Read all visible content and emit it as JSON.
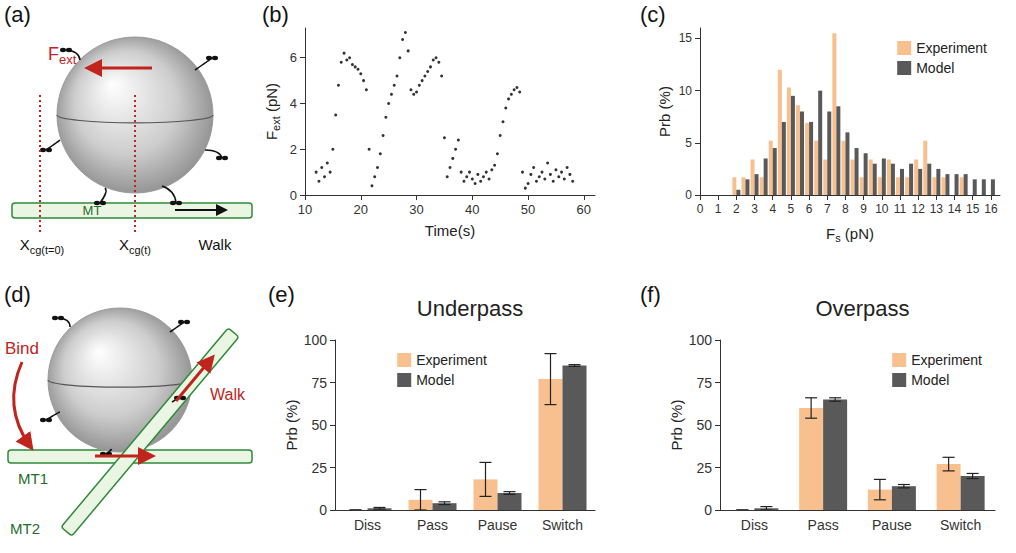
{
  "chart_data": [
    {
      "panel": "(b)",
      "type": "scatter",
      "x": [
        12,
        12.5,
        13,
        13.5,
        14,
        14.5,
        15,
        15.5,
        16,
        16.5,
        17,
        17.5,
        18,
        18.5,
        19,
        19.5,
        20,
        20.5,
        21,
        21.5,
        22,
        22.5,
        23,
        23.5,
        24,
        24.5,
        25,
        25.5,
        26,
        26.5,
        27,
        27.5,
        28,
        28.5,
        29,
        29.5,
        30,
        30.5,
        31,
        31.5,
        32,
        32.5,
        33,
        33.5,
        34,
        34.5,
        35,
        35.5,
        36,
        36.5,
        37,
        37.5,
        38,
        38.5,
        39,
        39.5,
        40,
        40.5,
        41,
        41.5,
        42,
        42.5,
        43,
        43.5,
        44,
        44.5,
        45,
        45.5,
        46,
        46.5,
        47,
        47.5,
        48,
        48.5,
        49,
        49.5,
        50,
        50.5,
        51,
        51.5,
        52,
        52.5,
        53,
        53.5,
        54,
        54.5,
        55,
        55.5,
        56,
        56.5,
        57,
        57.5,
        58
      ],
      "values": [
        1.0,
        0.6,
        1.2,
        0.8,
        1.4,
        1.0,
        2.0,
        3.5,
        4.8,
        5.8,
        6.2,
        5.9,
        6.0,
        5.7,
        5.6,
        5.5,
        5.3,
        5.0,
        4.6,
        2.0,
        0.4,
        0.8,
        1.2,
        1.8,
        2.6,
        3.4,
        4.0,
        4.4,
        4.8,
        5.2,
        6.0,
        6.8,
        7.1,
        6.3,
        4.6,
        4.4,
        4.5,
        4.8,
        5.0,
        5.2,
        5.4,
        5.6,
        5.9,
        6.0,
        5.8,
        5.2,
        2.5,
        0.8,
        1.2,
        1.6,
        2.0,
        2.4,
        1.0,
        0.6,
        0.8,
        1.0,
        0.7,
        0.5,
        0.9,
        0.6,
        0.8,
        1.0,
        0.7,
        1.1,
        1.3,
        1.8,
        2.6,
        3.2,
        3.8,
        4.2,
        4.4,
        4.6,
        4.7,
        4.5,
        1.0,
        0.3,
        0.5,
        0.9,
        1.2,
        0.6,
        0.8,
        1.0,
        0.7,
        1.4,
        0.9,
        0.6,
        1.1,
        0.8,
        1.0,
        0.7,
        1.2,
        0.9,
        0.6
      ],
      "color": "#000000",
      "marker": "circle",
      "xlabel": "Time(s)",
      "ylabel": {
        "main": "F",
        "sub": "ext",
        "rest": " (pN)"
      },
      "xlim": [
        10,
        62
      ],
      "xticks": [
        10,
        20,
        30,
        40,
        50,
        60
      ],
      "ylim": [
        0,
        7.3
      ],
      "yticks": [
        0,
        2,
        4,
        6
      ],
      "grid": false
    },
    {
      "panel": "(c)",
      "type": "bar",
      "x": [
        2,
        2.5,
        3,
        3.5,
        4,
        4.5,
        5,
        5.5,
        6,
        6.5,
        7,
        7.5,
        8,
        8.5,
        9,
        9.5,
        10,
        10.5,
        11,
        11.5,
        12,
        12.5,
        13,
        13.5,
        14,
        14.5,
        15,
        15.5,
        16
      ],
      "series": [
        {
          "name": "Experiment",
          "color": "#f8c08e",
          "values": [
            1.7,
            1.7,
            3.4,
            1.7,
            5.2,
            12,
            10.3,
            8.6,
            6.9,
            5.2,
            3.4,
            15.5,
            5.2,
            3.4,
            1.7,
            3.4,
            1.7,
            3.4,
            1.7,
            1.7,
            3.4,
            5.2,
            1.7,
            1.7,
            0,
            1.7,
            0,
            0,
            0
          ]
        },
        {
          "name": "Model",
          "color": "#595959",
          "values": [
            0.5,
            1.5,
            2.0,
            3.5,
            4.5,
            7.0,
            9.5,
            8.0,
            7.0,
            10.0,
            8.0,
            8.5,
            6.0,
            4.5,
            4.0,
            3.0,
            3.5,
            3.0,
            2.5,
            3.0,
            2.5,
            3.0,
            2.5,
            2.0,
            2.0,
            2.0,
            1.5,
            1.5,
            1.5
          ]
        }
      ],
      "xlabel": {
        "main": "F",
        "sub": "s",
        "rest": " (pN)"
      },
      "ylabel": "Prb (%)",
      "xlim": [
        0,
        16.5
      ],
      "xticks": [
        0,
        1,
        2,
        3,
        4,
        5,
        6,
        7,
        8,
        9,
        10,
        11,
        12,
        13,
        14,
        15,
        16
      ],
      "ylim": [
        0,
        16
      ],
      "yticks": [
        0,
        5,
        10,
        15
      ],
      "legend": "top-right",
      "grid": false
    },
    {
      "panel": "(e)",
      "type": "bar",
      "title": "Underpass",
      "categories": [
        "Diss",
        "Pass",
        "Pause",
        "Switch"
      ],
      "series": [
        {
          "name": "Experiment",
          "color": "#f8c08e",
          "values": [
            0,
            6,
            18,
            77
          ],
          "errors": [
            0,
            6,
            10,
            15
          ]
        },
        {
          "name": "Model",
          "color": "#595959",
          "values": [
            1,
            4,
            10,
            85
          ],
          "errors": [
            0.5,
            0.8,
            0.8,
            0.5
          ]
        }
      ],
      "ylabel": "Prb (%)",
      "ylim": [
        0,
        100
      ],
      "yticks": [
        0,
        25,
        50,
        75,
        100
      ],
      "legend": "top",
      "grid": false
    },
    {
      "panel": "(f)",
      "type": "bar",
      "title": "Overpass",
      "categories": [
        "Diss",
        "Pass",
        "Pause",
        "Switch"
      ],
      "series": [
        {
          "name": "Experiment",
          "color": "#f8c08e",
          "values": [
            0,
            60,
            12,
            27
          ],
          "errors": [
            0,
            6,
            6,
            4
          ]
        },
        {
          "name": "Model",
          "color": "#595959",
          "values": [
            1,
            65,
            14,
            20
          ],
          "errors": [
            1,
            1,
            1,
            1.5
          ]
        }
      ],
      "ylabel": "Prb (%)",
      "ylim": [
        0,
        100
      ],
      "yticks": [
        0,
        25,
        50,
        75,
        100
      ],
      "legend": "top-right",
      "grid": false
    }
  ],
  "diagrams": [
    {
      "panel": "(a)",
      "force": {
        "main": "F",
        "sub": "ext"
      },
      "start": {
        "main": "X",
        "sub": "cg(t=0)"
      },
      "position": {
        "main": "X",
        "sub": "cg(t)"
      },
      "track": "MT",
      "motion": "Walk"
    },
    {
      "panel": "(d)",
      "bind": "Bind",
      "track1": "MT1",
      "track2": "MT2",
      "motion": "Walk"
    }
  ]
}
